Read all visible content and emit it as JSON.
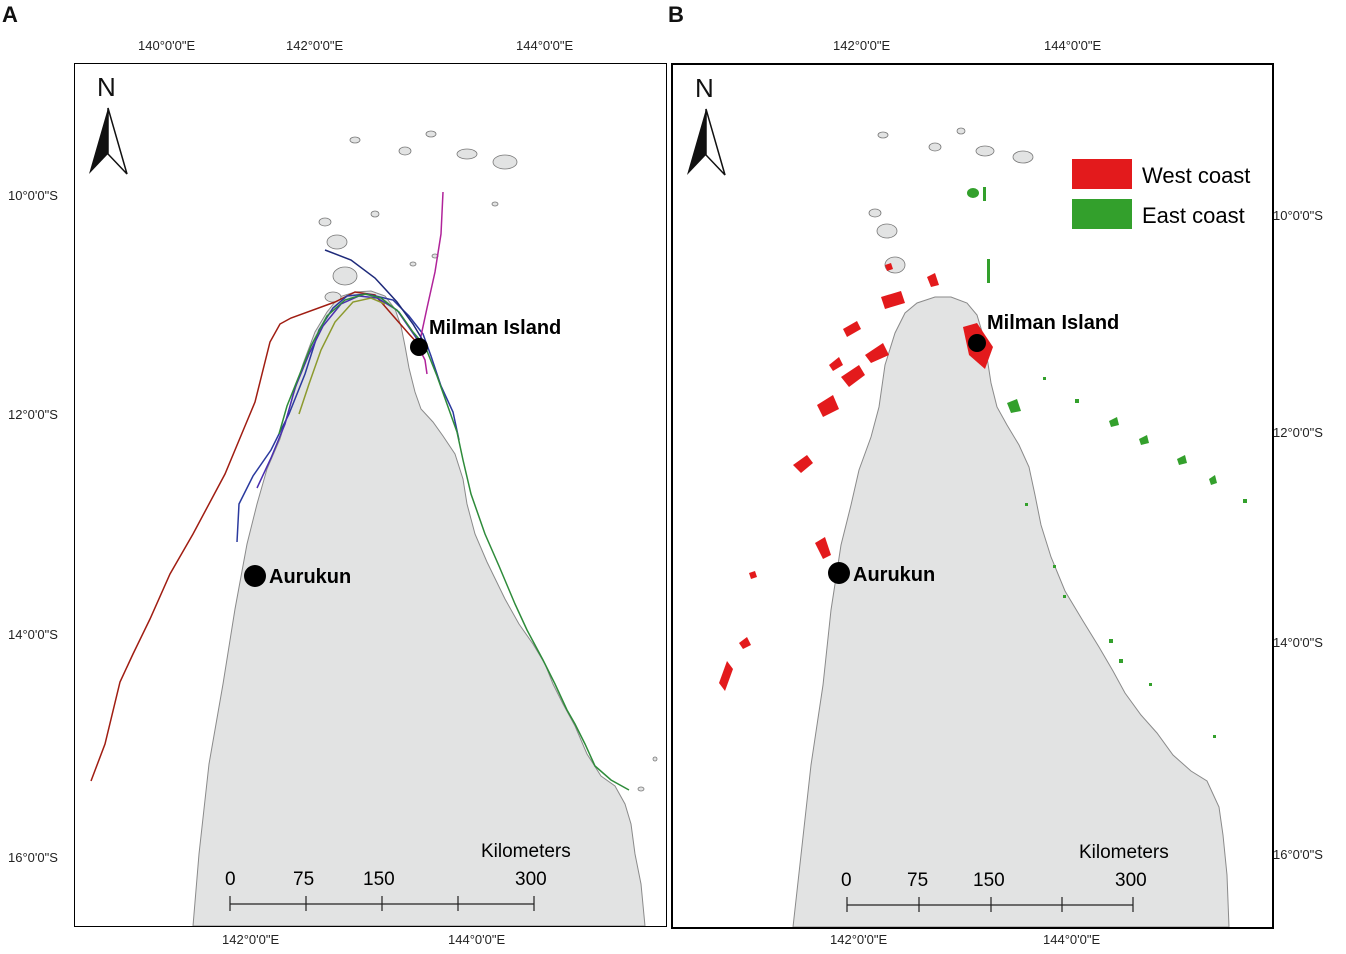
{
  "panels": [
    {
      "letter": "A",
      "lon_top": [
        "140°0'0\"E",
        "142°0'0\"E",
        "144°0'0\"E"
      ],
      "lon_bottom": [
        "142°0'0\"E",
        "144°0'0\"E"
      ],
      "lat_left": [
        "10°0'0\"S",
        "12°0'0\"S",
        "14°0'0\"S",
        "16°0'0\"S"
      ],
      "north_label": "N",
      "places": [
        "Milman Island",
        "Aurukun"
      ],
      "scale": {
        "title": "Kilometers",
        "ticks": [
          "0",
          "75",
          "150",
          "300"
        ]
      }
    },
    {
      "letter": "B",
      "lon_top": [
        "142°0'0\"E",
        "144°0'0\"E"
      ],
      "lon_bottom": [
        "142°0'0\"E",
        "144°0'0\"E"
      ],
      "lat_right": [
        "10°0'0\"S",
        "12°0'0\"S",
        "14°0'0\"S",
        "16°0'0\"S"
      ],
      "north_label": "N",
      "places": [
        "Milman Island",
        "Aurukun"
      ],
      "legend": [
        {
          "label": "West coast",
          "color": "#e31a1c"
        },
        {
          "label": "East coast",
          "color": "#33a02c"
        }
      ],
      "scale": {
        "title": "Kilometers",
        "ticks": [
          "0",
          "75",
          "150",
          "300"
        ]
      }
    }
  ],
  "colors": {
    "land": "#e2e3e3",
    "coastline": "#8a8a8a",
    "track_red": "#a01d12",
    "track_blue": "#2b3a9e",
    "track_purple": "#7a2fa0",
    "track_green": "#2e8b3a",
    "track_magenta": "#b0239a",
    "track_olive": "#8c9a2e"
  }
}
